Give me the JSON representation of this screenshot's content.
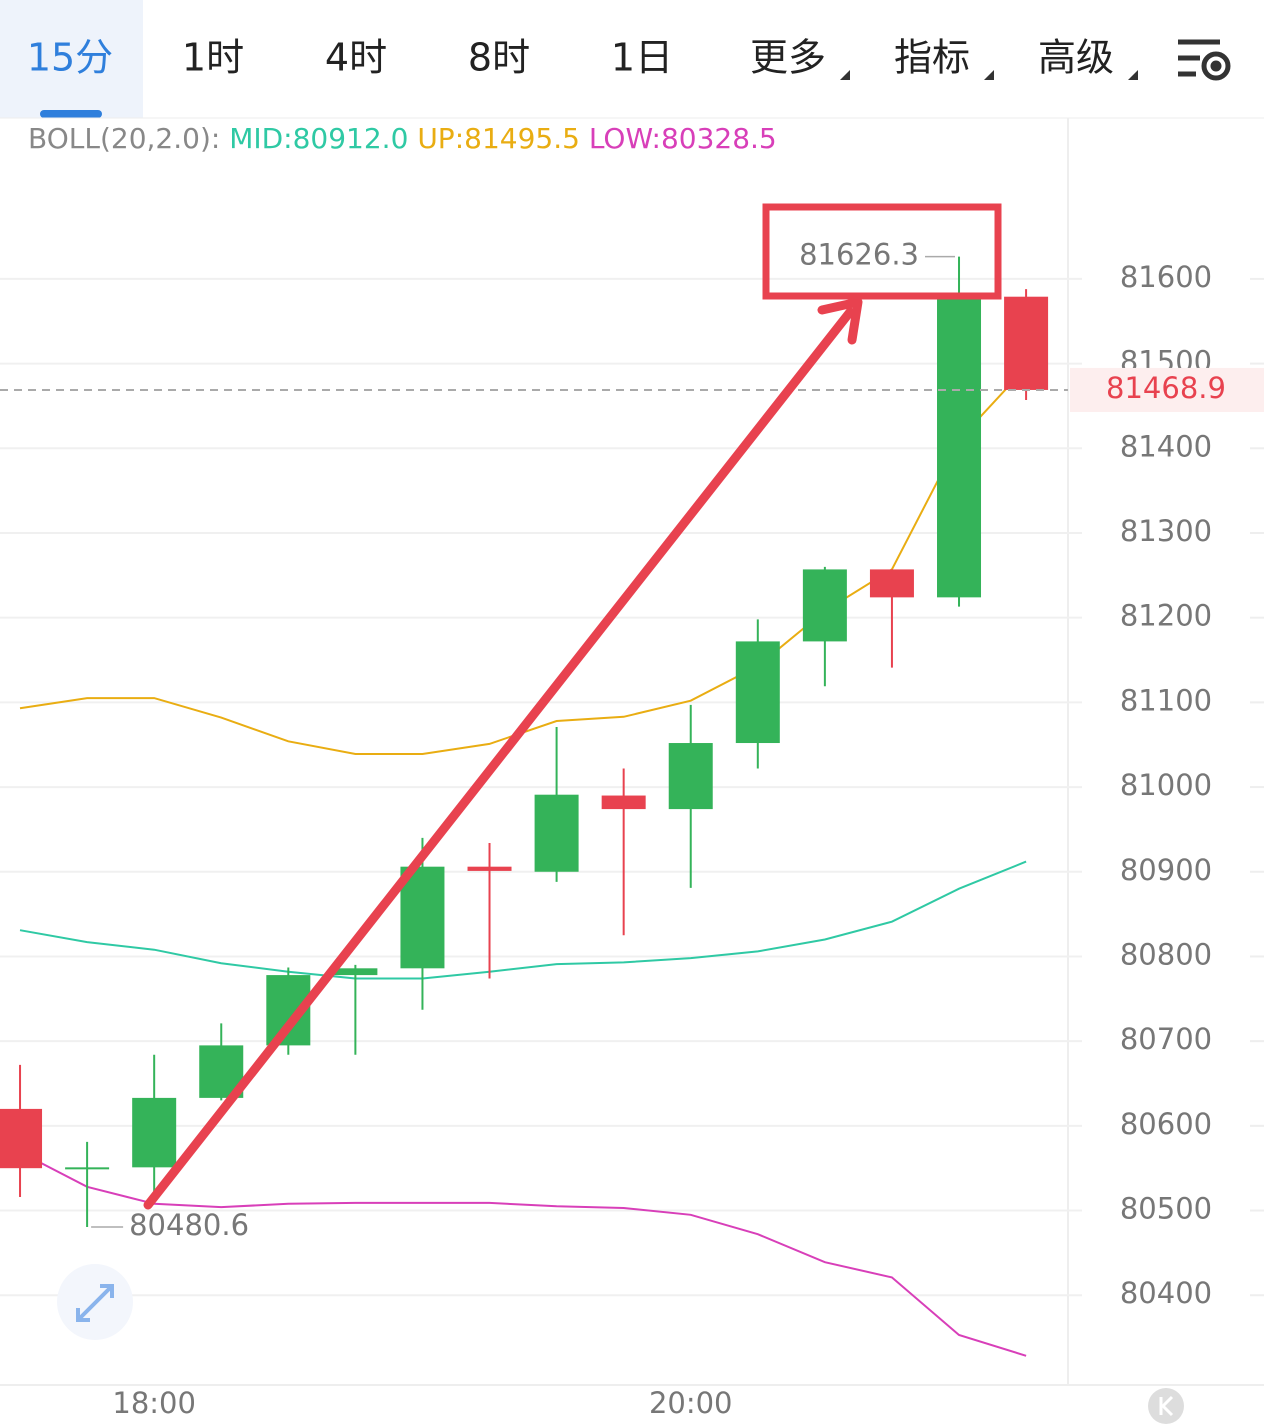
{
  "tabs": [
    "15分",
    "1时",
    "4时",
    "8时",
    "1日",
    "更多",
    "指标",
    "高级"
  ],
  "chart_data": {
    "type": "candlestick",
    "indicator": "BOLL(20,2.0):",
    "categories": [
      null,
      null,
      "18:00",
      null,
      null,
      null,
      null,
      null,
      null,
      null,
      "20:00",
      null,
      null,
      null,
      null,
      null
    ],
    "open": [
      80620,
      80551,
      80551,
      80633,
      80695,
      80778,
      80786,
      80906,
      80900,
      80990,
      80974,
      81052,
      81172,
      81257,
      81224,
      81579
    ],
    "high": [
      80672,
      80581,
      80684,
      80721,
      80787,
      80790,
      80940,
      80934,
      81071,
      81022,
      81097,
      81198,
      81260,
      81257,
      81626.3,
      81588
    ],
    "low": [
      80516,
      80480.6,
      80518,
      80630,
      80684,
      80684,
      80737,
      80774,
      80888,
      80825,
      80881,
      81022,
      81119,
      81141,
      81213,
      81457
    ],
    "close": [
      80550,
      80551,
      80633,
      80695,
      80778,
      80786,
      80906,
      80901,
      80991,
      80974,
      81052,
      81172,
      81257,
      81224,
      81579,
      81468.9
    ],
    "up_color": "#34b359",
    "down_color": "#e8424f",
    "series": [
      {
        "name": "MID:80912.0",
        "color": "#2fc9a4",
        "values": [
          80831,
          80817,
          80808,
          80792,
          80782,
          80774,
          80774,
          80782,
          80791,
          80793,
          80798,
          80806,
          80820,
          80841,
          80880,
          80912.0
        ]
      },
      {
        "name": "UP:81495.5",
        "color": "#e9ad12",
        "values": [
          81093,
          81105,
          81105,
          81082,
          81054,
          81039,
          81039,
          81051,
          81078,
          81083,
          81102,
          81143,
          81208,
          81257,
          81410,
          81495.5
        ]
      },
      {
        "name": "LOW:80328.5",
        "color": "#d83fb9",
        "values": [
          80569,
          80528,
          80508,
          80504,
          80508,
          80509,
          80509,
          80509,
          80505,
          80503,
          80495,
          80472,
          80439,
          80421,
          80353,
          80328.5
        ]
      }
    ],
    "annotations": [
      {
        "text": "81626.3",
        "value": 81626.3,
        "index": 14,
        "side": "left"
      },
      {
        "text": "80480.6",
        "value": 80480.6,
        "index": 1,
        "side": "right"
      }
    ],
    "last_price": 81468.9,
    "last_price_label": "81468.9",
    "ylim": [
      80294,
      81790
    ],
    "yticks": [
      80400,
      80500,
      80600,
      80700,
      80800,
      80900,
      81000,
      81100,
      81200,
      81300,
      81400,
      81500,
      81600
    ],
    "grid": true
  }
}
